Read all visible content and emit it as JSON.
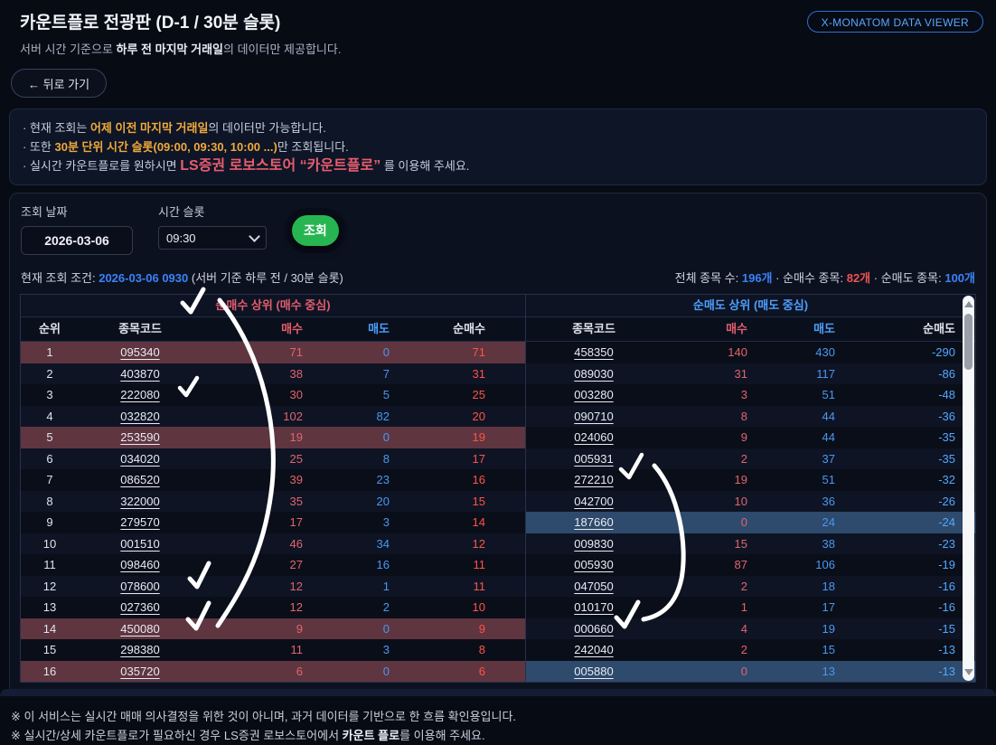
{
  "page": {
    "title": "카운트플로 전광판 (D-1 / 30분 슬롯)",
    "subtitle_prefix": "서버 시간 기준으로 ",
    "subtitle_bold": "하루 전 마지막 거래일",
    "subtitle_suffix": "의 데이터만 제공합니다.",
    "back_button": "← 뒤로 가기",
    "viewer_button": "X-MONATOM DATA VIEWER"
  },
  "notice": {
    "line1_prefix": "· 현재 조회는 ",
    "line1_bold": "어제 이전 마지막 거래일",
    "line1_suffix": "의 데이터만 가능합니다.",
    "line2_prefix": "· 또한 ",
    "line2_bold": "30분 단위 시간 슬롯(09:00, 09:30, 10:00 ...)",
    "line2_suffix": "만 조회됩니다.",
    "line3_prefix": "· 실시간 카운트플로를 원하시면 ",
    "line3_bold": "LS증권 로보스토어 “카운트플로”",
    "line3_suffix": " 를 이용해 주세요."
  },
  "controls": {
    "date_label": "조회 날짜",
    "date_value": "2026-03-06",
    "slot_label": "시간 슬롯",
    "slot_value": "09:30",
    "query_button": "조회"
  },
  "status": {
    "cond_prefix": "현재 조회 조건: ",
    "cond_value": "2026-03-06 0930",
    "cond_suffix": " (서버 기준 하루 전 / 30분 슬롯)",
    "total_label": "전체 종목 수: ",
    "total_value": "196개",
    "buy_label": " · 순매수 종목: ",
    "buy_value": "82개",
    "sell_label": " · 순매도 종목: ",
    "sell_value": "100개"
  },
  "buy_table": {
    "group_title": "순매수 상위 (매수 중심)",
    "headers": [
      "순위",
      "종목코드",
      "매수",
      "매도",
      "순매수"
    ],
    "rows": [
      {
        "rank": 1,
        "code": "095340",
        "buy": 71,
        "sell": 0,
        "net": 71,
        "hl": true
      },
      {
        "rank": 2,
        "code": "403870",
        "buy": 38,
        "sell": 7,
        "net": 31,
        "hl": false
      },
      {
        "rank": 3,
        "code": "222080",
        "buy": 30,
        "sell": 5,
        "net": 25,
        "hl": false
      },
      {
        "rank": 4,
        "code": "032820",
        "buy": 102,
        "sell": 82,
        "net": 20,
        "hl": false
      },
      {
        "rank": 5,
        "code": "253590",
        "buy": 19,
        "sell": 0,
        "net": 19,
        "hl": true
      },
      {
        "rank": 6,
        "code": "034020",
        "buy": 25,
        "sell": 8,
        "net": 17,
        "hl": false
      },
      {
        "rank": 7,
        "code": "086520",
        "buy": 39,
        "sell": 23,
        "net": 16,
        "hl": false
      },
      {
        "rank": 8,
        "code": "322000",
        "buy": 35,
        "sell": 20,
        "net": 15,
        "hl": false
      },
      {
        "rank": 9,
        "code": "279570",
        "buy": 17,
        "sell": 3,
        "net": 14,
        "hl": false
      },
      {
        "rank": 10,
        "code": "001510",
        "buy": 46,
        "sell": 34,
        "net": 12,
        "hl": false
      },
      {
        "rank": 11,
        "code": "098460",
        "buy": 27,
        "sell": 16,
        "net": 11,
        "hl": false
      },
      {
        "rank": 12,
        "code": "078600",
        "buy": 12,
        "sell": 1,
        "net": 11,
        "hl": false
      },
      {
        "rank": 13,
        "code": "027360",
        "buy": 12,
        "sell": 2,
        "net": 10,
        "hl": false
      },
      {
        "rank": 14,
        "code": "450080",
        "buy": 9,
        "sell": 0,
        "net": 9,
        "hl": true
      },
      {
        "rank": 15,
        "code": "298380",
        "buy": 11,
        "sell": 3,
        "net": 8,
        "hl": false
      },
      {
        "rank": 16,
        "code": "035720",
        "buy": 6,
        "sell": 0,
        "net": 6,
        "hl": true
      }
    ]
  },
  "sell_table": {
    "group_title": "순매도 상위 (매도 중심)",
    "headers": [
      "종목코드",
      "매수",
      "매도",
      "순매도"
    ],
    "rows": [
      {
        "code": "458350",
        "buy": 140,
        "sell": 430,
        "net": -290,
        "hl": false
      },
      {
        "code": "089030",
        "buy": 31,
        "sell": 117,
        "net": -86,
        "hl": false
      },
      {
        "code": "003280",
        "buy": 3,
        "sell": 51,
        "net": -48,
        "hl": false
      },
      {
        "code": "090710",
        "buy": 8,
        "sell": 44,
        "net": -36,
        "hl": false
      },
      {
        "code": "024060",
        "buy": 9,
        "sell": 44,
        "net": -35,
        "hl": false
      },
      {
        "code": "005931",
        "buy": 2,
        "sell": 37,
        "net": -35,
        "hl": false
      },
      {
        "code": "272210",
        "buy": 19,
        "sell": 51,
        "net": -32,
        "hl": false
      },
      {
        "code": "042700",
        "buy": 10,
        "sell": 36,
        "net": -26,
        "hl": false
      },
      {
        "code": "187660",
        "buy": 0,
        "sell": 24,
        "net": -24,
        "hl": true
      },
      {
        "code": "009830",
        "buy": 15,
        "sell": 38,
        "net": -23,
        "hl": false
      },
      {
        "code": "005930",
        "buy": 87,
        "sell": 106,
        "net": -19,
        "hl": false
      },
      {
        "code": "047050",
        "buy": 2,
        "sell": 18,
        "net": -16,
        "hl": false
      },
      {
        "code": "010170",
        "buy": 1,
        "sell": 17,
        "net": -16,
        "hl": false
      },
      {
        "code": "000660",
        "buy": 4,
        "sell": 19,
        "net": -15,
        "hl": false
      },
      {
        "code": "242040",
        "buy": 2,
        "sell": 15,
        "net": -13,
        "hl": false
      },
      {
        "code": "005880",
        "buy": 0,
        "sell": 13,
        "net": -13,
        "hl": true
      }
    ]
  },
  "footer": {
    "line1": "※ 이 서비스는 실시간 매매 의사결정을 위한 것이 아니며, 과거 데이터를 기반으로 한 흐름 확인용입니다.",
    "line2_prefix": "※ 실시간/상세 카운트플로가 필요하신 경우 LS증권 로보스토어에서 ",
    "line2_bold": "카운트 플로",
    "line2_suffix": "를 이용해 주세요."
  },
  "colors": {
    "accent_blue": "#3b82f6",
    "link_blue": "#58a6ff",
    "buy_red": "#e0656c",
    "sell_blue": "#4a97f0",
    "net_red": "#ff5348",
    "net_blue": "#53a7ff",
    "highlight_red": "#5f3540",
    "highlight_blue": "#2e4a6c",
    "warn_orange": "#f0a93c",
    "alert_red": "#e85d6e",
    "query_green": "#27b551"
  }
}
